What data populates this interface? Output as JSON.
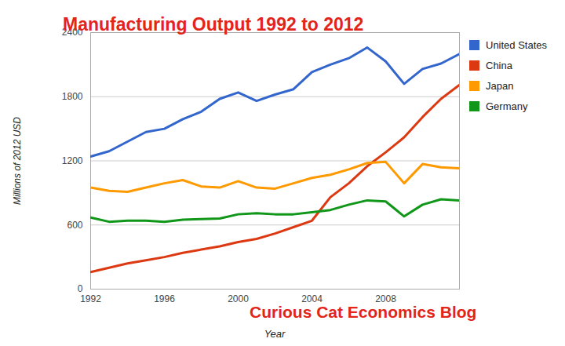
{
  "chart_data": {
    "type": "line",
    "title": "Manufacturing Output 1992 to 2012",
    "x_label": "Year",
    "y_label": "Millions of 2012 USD",
    "annotation": "Curious Cat Economics Blog",
    "x": [
      1992,
      1993,
      1994,
      1995,
      1996,
      1997,
      1998,
      1999,
      2000,
      2001,
      2002,
      2003,
      2004,
      2005,
      2006,
      2007,
      2008,
      2009,
      2010,
      2011,
      2012
    ],
    "series": [
      {
        "name": "United States",
        "color": "#3366cc",
        "values": [
          1240,
          1290,
          1380,
          1470,
          1500,
          1590,
          1660,
          1780,
          1840,
          1760,
          1820,
          1870,
          2030,
          2100,
          2160,
          2260,
          2130,
          1920,
          2060,
          2110,
          2200
        ]
      },
      {
        "name": "China",
        "color": "#dc3912",
        "values": [
          160,
          200,
          240,
          270,
          300,
          340,
          370,
          400,
          440,
          470,
          520,
          580,
          640,
          860,
          990,
          1150,
          1280,
          1420,
          1610,
          1780,
          1910
        ]
      },
      {
        "name": "Japan",
        "color": "#ff9900",
        "values": [
          950,
          920,
          910,
          950,
          990,
          1020,
          960,
          950,
          1010,
          950,
          940,
          990,
          1040,
          1070,
          1120,
          1180,
          1190,
          990,
          1170,
          1140,
          1130
        ]
      },
      {
        "name": "Germany",
        "color": "#109618",
        "values": [
          670,
          630,
          640,
          640,
          630,
          650,
          655,
          660,
          700,
          710,
          700,
          700,
          720,
          740,
          790,
          830,
          820,
          680,
          790,
          840,
          830
        ]
      }
    ],
    "xlim": [
      1992,
      2012
    ],
    "xticks": [
      1992,
      1996,
      2000,
      2004,
      2008
    ],
    "ylim": [
      0,
      2400
    ],
    "yticks": [
      0,
      600,
      1200,
      1800,
      2400
    ],
    "grid": true,
    "legend": "right"
  }
}
